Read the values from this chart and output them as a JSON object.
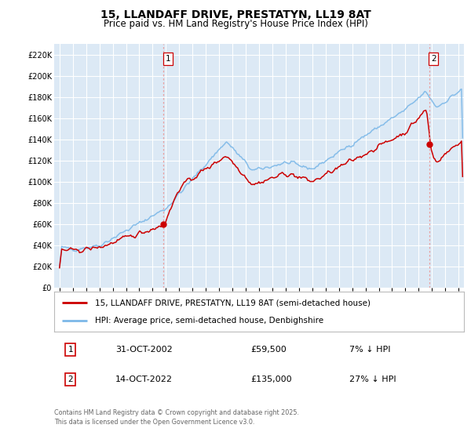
{
  "title_line1": "15, LLANDAFF DRIVE, PRESTATYN, LL19 8AT",
  "title_line2": "Price paid vs. HM Land Registry's House Price Index (HPI)",
  "plot_bg_color": "#dce9f5",
  "hpi_color": "#7cb8e8",
  "price_color": "#cc0000",
  "marker_color": "#cc0000",
  "dashed_line_color": "#e8a0a0",
  "grid_color": "#ffffff",
  "ylim": [
    0,
    230000
  ],
  "xlim_left": 1994.6,
  "xlim_right": 2025.4,
  "ytick_step": 20000,
  "sale1_date_label": "31-OCT-2002",
  "sale1_price": 59500,
  "sale1_hpi_pct": "7% ↓ HPI",
  "sale2_date_label": "14-OCT-2022",
  "sale2_price": 135000,
  "sale2_hpi_pct": "27% ↓ HPI",
  "legend_label1": "15, LLANDAFF DRIVE, PRESTATYN, LL19 8AT (semi-detached house)",
  "legend_label2": "HPI: Average price, semi-detached house, Denbighshire",
  "footnote": "Contains HM Land Registry data © Crown copyright and database right 2025.\nThis data is licensed under the Open Government Licence v3.0.",
  "sale1_x": 2002.83,
  "sale2_x": 2022.79,
  "sale1_y": 59500,
  "sale2_y": 135000,
  "marker1_label": "1",
  "marker2_label": "2",
  "title_fontsize": 10,
  "subtitle_fontsize": 8.5,
  "tick_fontsize": 7,
  "legend_fontsize": 7.5,
  "table_fontsize": 8,
  "footnote_fontsize": 5.8
}
